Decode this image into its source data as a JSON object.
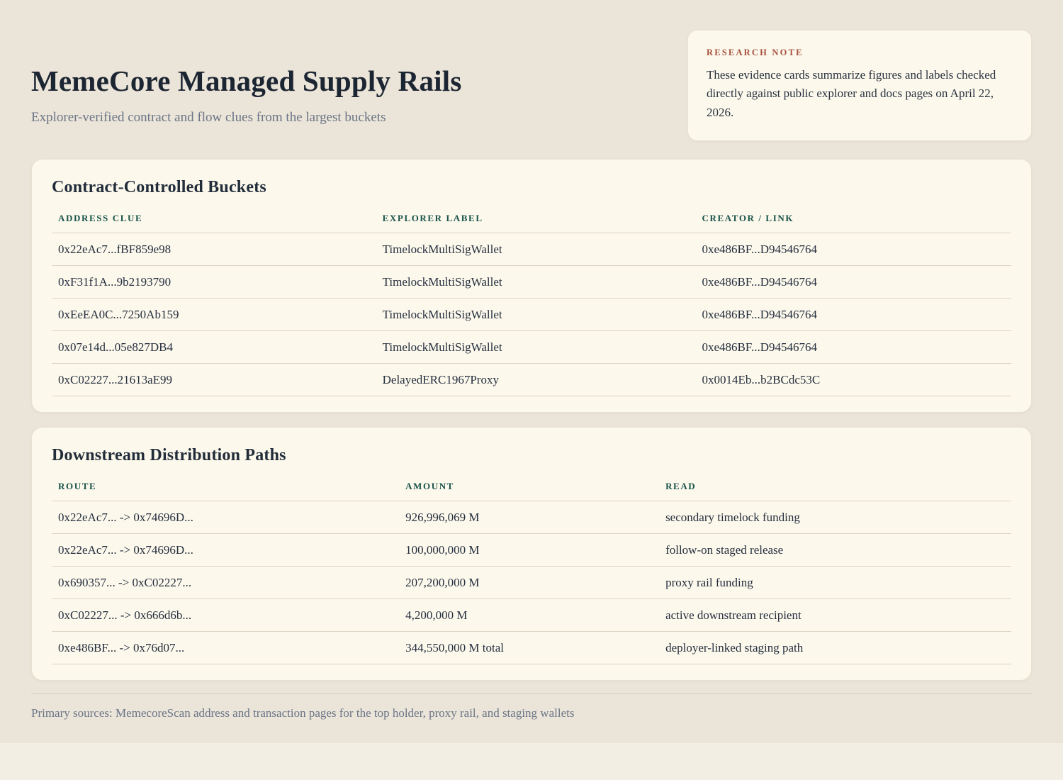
{
  "page": {
    "title": "MemeCore Managed Supply Rails",
    "subtitle": "Explorer-verified contract and flow clues from the largest buckets",
    "footer": "Primary sources: MemecoreScan address and transaction pages for the top holder, proxy rail, and staging wallets"
  },
  "research_note": {
    "label": "Research Note",
    "body": "These evidence cards summarize figures and labels checked directly against public explorer and docs pages on April 22, 2026."
  },
  "tables": [
    {
      "title": "Contract-Controlled Buckets",
      "columns": [
        "Address Clue",
        "Explorer Label",
        "Creator / Link"
      ],
      "rows": [
        [
          "0x22eAc7...fBF859e98",
          "TimelockMultiSigWallet",
          "0xe486BF...D94546764"
        ],
        [
          "0xF31f1A...9b2193790",
          "TimelockMultiSigWallet",
          "0xe486BF...D94546764"
        ],
        [
          "0xEeEA0C...7250Ab159",
          "TimelockMultiSigWallet",
          "0xe486BF...D94546764"
        ],
        [
          "0x07e14d...05e827DB4",
          "TimelockMultiSigWallet",
          "0xe486BF...D94546764"
        ],
        [
          "0xC02227...21613aE99",
          "DelayedERC1967Proxy",
          "0x0014Eb...b2BCdc53C"
        ]
      ]
    },
    {
      "title": "Downstream Distribution Paths",
      "columns": [
        "Route",
        "Amount",
        "Read"
      ],
      "rows": [
        [
          "0x22eAc7... -> 0x74696D...",
          "926,996,069 M",
          "secondary timelock funding"
        ],
        [
          "0x22eAc7... -> 0x74696D...",
          "100,000,000 M",
          "follow-on staged release"
        ],
        [
          "0x690357... -> 0xC02227...",
          "207,200,000 M",
          "proxy rail funding"
        ],
        [
          "0xC02227... -> 0x666d6b...",
          "4,200,000 M",
          "active downstream recipient"
        ],
        [
          "0xe486BF... -> 0x76d07...",
          "344,550,000 M total",
          "deployer-linked staging path"
        ]
      ]
    }
  ],
  "colors": {
    "page_background": "#EBE4D8",
    "outer_background": "#F3EEE3",
    "card_background": "#FCF8EC",
    "heading_text": "#1C2633",
    "column_header_teal": "#19534A",
    "note_label_rust": "#A8503C",
    "muted_text": "#6B7587",
    "row_divider": "#DDD4C3"
  }
}
